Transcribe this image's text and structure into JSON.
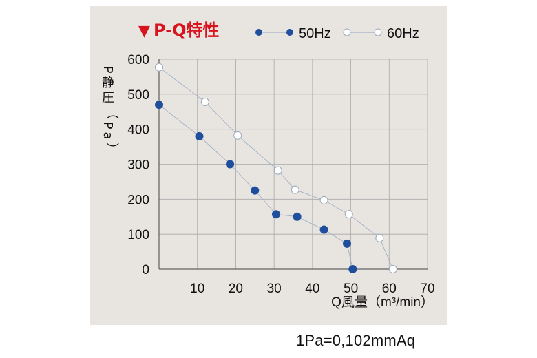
{
  "chart_data": {
    "type": "line",
    "title": "P-Q特性",
    "title_marker": "▼",
    "title_color": "#d7141e",
    "xlabel": "Q風量（m³/min）",
    "ylabel": "P静圧（Pa）",
    "xticks": [
      "10",
      "20",
      "30",
      "40",
      "50",
      "60",
      "70"
    ],
    "yticks": [
      "0",
      "100",
      "200",
      "300",
      "400",
      "500",
      "600"
    ],
    "xlim": [
      0,
      70
    ],
    "ylim": [
      0,
      600
    ],
    "grid": true,
    "legend_position": "top",
    "series": [
      {
        "name": "50Hz",
        "marker": "filled",
        "color": "#1f4e9c",
        "x": [
          0,
          10.5,
          18.5,
          25,
          30.5,
          36,
          43,
          49,
          50.5
        ],
        "y": [
          470,
          380,
          300,
          225,
          157,
          150,
          113,
          73,
          0
        ]
      },
      {
        "name": "60Hz",
        "marker": "open",
        "color": "#ffffff",
        "x": [
          0,
          12,
          20.5,
          31,
          35.5,
          43,
          49.5,
          57.5,
          61
        ],
        "y": [
          577,
          478,
          382,
          282,
          227,
          197,
          157,
          89,
          0
        ]
      }
    ]
  },
  "footnote": "1Pa=0,102mmAq"
}
